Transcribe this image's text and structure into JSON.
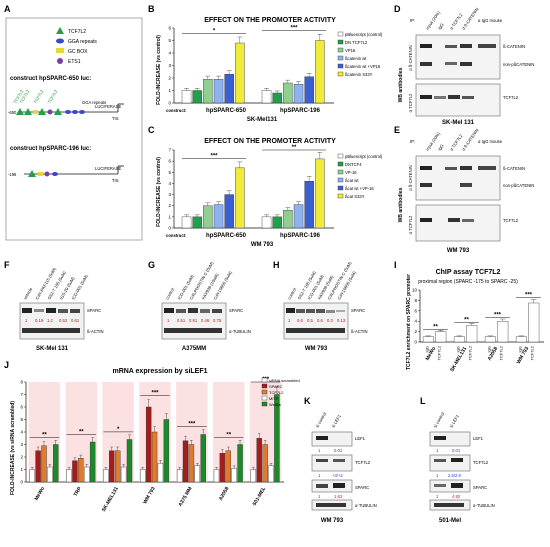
{
  "panels": [
    "A",
    "B",
    "C",
    "D",
    "E",
    "F",
    "G",
    "H",
    "I",
    "J",
    "K",
    "L"
  ],
  "panelA": {
    "legend": [
      {
        "label": "TCF7L2",
        "color": "#22a04a",
        "shape": "triangle"
      },
      {
        "label": "GGA repeats",
        "color": "#3b46c9",
        "shape": "ellipse"
      },
      {
        "label": "GC BOX",
        "color": "#e5d83a",
        "shape": "rect"
      },
      {
        "label": "ETS1",
        "color": "#7a3fa6",
        "shape": "circle"
      }
    ],
    "construct1": {
      "label": "construct hpSPARC-650 luc:",
      "start": "-650",
      "gga": "GGA  repeats",
      "luc": "LUCIFERASE",
      "tis": "TIS"
    },
    "construct2": {
      "label": "construct hpSPARC-196 luc:",
      "start": "-196",
      "luc": "LUCIFERASE",
      "tis": "TIS"
    },
    "sites": [
      "TCF7L2",
      "TCF7L2",
      "TCF7L2",
      "TCF7L2"
    ]
  },
  "colors": {
    "white": "#ffffff",
    "green": "#1fa04a",
    "lightgreen": "#8fd08f",
    "blue": "#3b5fd0",
    "lightblue": "#8fb2ee",
    "yellow": "#f0ea3a",
    "darkred": "#a51c1c",
    "orange": "#e07a2c",
    "darkgreen": "#1a8a2a",
    "pinkbg": "#f7c9c9"
  },
  "panelB": {
    "title": "EFFECT ON THE PROMOTER ACTIVITY",
    "ylabel": "FOLD-INCREASE (vs control)",
    "construct": "construct:",
    "cell": "SK-Mel131",
    "groups": [
      "hpSPARC-650",
      "hpSPARC-196"
    ],
    "legend": [
      "pBluescript (control)",
      "DN TCF7L2",
      "VP16",
      "ßcatenin wt",
      "ßcatenin wt +VP16",
      "ßcatenin S33Y"
    ],
    "sig": [
      "*",
      "***",
      "*",
      "***"
    ]
  },
  "panelC": {
    "title": "EFFECT ON THE PROMOTER ACTIVITY",
    "ylabel": "FOLD-INCREASE (vs control)",
    "construct": "construct:",
    "cell": "WM 793",
    "groups": [
      "hpSPARC-650",
      "hpSPARC-196"
    ],
    "legend": [
      "pBluescript (control)",
      "DNTCF4",
      "VP-16",
      "ßcat wt",
      "ßcat wt +VP-16",
      "ßcat S33Y"
    ],
    "sig": [
      "***",
      "**",
      "***",
      "**"
    ]
  },
  "panelD": {
    "ip_label": "IP:",
    "lanes": [
      "input (20%)",
      "IgG",
      "α TCF7L2",
      "α ß-CATENIN",
      "α IgG mouse"
    ],
    "wb": "WB antibodies",
    "blot1": "ß-CATENIN",
    "blot1b": "non-pßCATENIN",
    "blot2": "TCF7L2",
    "side1": "α ß-CATENIN",
    "side2": "α TCF7L2",
    "cell": "SK-Mel 131"
  },
  "panelE": {
    "ip_label": "IP:",
    "lanes": [
      "input (20%)",
      "IgG",
      "α TCF7L2",
      "α ß-CATENIN",
      "α IgG mouse"
    ],
    "wb": "WB antibodies",
    "blot1": "ß-CATENIN",
    "blot1b": "non-pßCATENIN",
    "blot2": "TCF7L2",
    "side1": "α ß-CATENIN",
    "side2": "α TCF7L2",
    "cell": "WM 793"
  },
  "panelF": {
    "lanes": [
      "vehicle",
      "CAY-PKF115 (5uM)",
      "SS2-T 105 (5uM)",
      "IGS-29 (5uM)",
      "ICG-001 (5uM)"
    ],
    "quant": [
      "1",
      "0.19",
      "1.2",
      "0.52",
      "0.61"
    ],
    "bands": [
      "SPARC",
      "ß-ACTIN"
    ],
    "cell": "SK-Mel 131"
  },
  "panelG": {
    "lanes": [
      "control",
      "ICG-001 (5uM)",
      "CALPHOSTIN C (5uM)",
      "XAV939 (10uM)",
      "CAY10650 (5uM)"
    ],
    "quant": [
      "1",
      "0.51",
      "0.81",
      "0.46",
      "0.75"
    ],
    "bands": [
      "SPARC",
      "α-TUBULIN"
    ],
    "cell": "A375MM"
  },
  "panelH": {
    "lanes": [
      "control",
      "SS2-T 105 (5uM)",
      "ICG-001 (5uM)",
      "XAV939 (5uM)",
      "CALPHOSTIN C (5uM)",
      "CAY10650 (5uM)"
    ],
    "quant": [
      "1",
      "0.6",
      "0.5",
      "0.6",
      "0.3",
      "0.13"
    ],
    "bands": [
      "SPARC",
      "ß-ACTIN"
    ],
    "cell": "WM 793"
  },
  "panelI": {
    "title": "ChIP assay TCF7L2",
    "subtitle": "proximal region (SPARC -175 to SPARC -25)",
    "ylabel": "TCF7L2 enrichment on SPARC promoter",
    "cells": [
      "MeWo",
      "SK-MEL131",
      "A2058",
      "WM 793"
    ],
    "bars": [
      "IgG",
      "TCF7L2"
    ],
    "sig": [
      "**",
      "**",
      "***",
      "***"
    ]
  },
  "panelJ": {
    "title": "mRNA expression by siLEF1",
    "ylabel": "FOLD-INCREASE (vs siRNA scrambled)",
    "cells": [
      "MeWo",
      "TRP",
      "SK-MEL131",
      "WM 793",
      "A375 MM",
      "A2058",
      "501-MEL"
    ],
    "legend": [
      "siRNA scrambled",
      "SPARC",
      "TCF7L2",
      "MITF",
      "Wnt5a"
    ],
    "sig": [
      "**",
      "**",
      "*",
      "***",
      "***",
      "**",
      "***"
    ]
  },
  "panelK": {
    "lanes": [
      "si control",
      "si LEF1"
    ],
    "bands": [
      "LEF1",
      "TCF7L2",
      "SPARC",
      "α-TUBULIN"
    ],
    "q1": [
      "1",
      "0.01"
    ],
    "q2": [
      "1",
      "+3/+2"
    ],
    "q3": [
      "1",
      "1.63"
    ],
    "cell": "WM 793"
  },
  "panelL": {
    "lanes": [
      "si control",
      "si LEF1"
    ],
    "bands": [
      "LEF1",
      "TCF7L2",
      "SPARC",
      "α-TUBULIN"
    ],
    "q1": [
      "1",
      "0.01"
    ],
    "q2": [
      "1",
      "2.5/2.9"
    ],
    "q3": [
      "1",
      "4.92"
    ],
    "cell": "501-Mel"
  },
  "chart_data": [
    {
      "panel": "B",
      "type": "bar",
      "title": "EFFECT ON THE PROMOTER ACTIVITY",
      "ylabel": "FOLD-INCREASE (vs control)",
      "ylim": [
        0,
        6
      ],
      "categories": [
        "hpSPARC-650",
        "hpSPARC-196"
      ],
      "series": [
        {
          "name": "pBluescript (control)",
          "values": [
            1,
            1
          ]
        },
        {
          "name": "DN TCF7L2",
          "values": [
            1,
            0.8
          ]
        },
        {
          "name": "VP16",
          "values": [
            1.9,
            1.6
          ]
        },
        {
          "name": "ßcatenin wt",
          "values": [
            1.9,
            1.5
          ]
        },
        {
          "name": "ßcatenin wt +VP16",
          "values": [
            2.3,
            2.1
          ]
        },
        {
          "name": "ßcatenin S33Y",
          "values": [
            4.8,
            5.0
          ]
        }
      ]
    },
    {
      "panel": "C",
      "type": "bar",
      "title": "EFFECT ON THE PROMOTER ACTIVITY",
      "ylabel": "FOLD-INCREASE (vs control)",
      "ylim": [
        0,
        7
      ],
      "categories": [
        "hpSPARC-650",
        "hpSPARC-196"
      ],
      "series": [
        {
          "name": "pBluescript (control)",
          "values": [
            1,
            1
          ]
        },
        {
          "name": "DNTCF4",
          "values": [
            1,
            1
          ]
        },
        {
          "name": "VP-16",
          "values": [
            2.0,
            1.6
          ]
        },
        {
          "name": "ßcat wt",
          "values": [
            2.1,
            2.1
          ]
        },
        {
          "name": "ßcat wt +VP-16",
          "values": [
            3.0,
            4.2
          ]
        },
        {
          "name": "ßcat S33Y",
          "values": [
            5.4,
            6.2
          ]
        }
      ]
    },
    {
      "panel": "I",
      "type": "bar",
      "title": "ChIP assay TCF7L2",
      "ylabel": "TCF7L2 enrichment on SPARC promoter",
      "ylim": [
        0,
        10
      ],
      "categories": [
        "MeWo",
        "SK-MEL131",
        "A2058",
        "WM 793"
      ],
      "series": [
        {
          "name": "IgG",
          "values": [
            1,
            1,
            1,
            1
          ]
        },
        {
          "name": "TCF7L2",
          "values": [
            2.0,
            3.2,
            4.0,
            7.5
          ]
        }
      ]
    },
    {
      "panel": "J",
      "type": "bar",
      "title": "mRNA expression by siLEF1",
      "ylabel": "FOLD-INCREASE (vs siRNA scrambled)",
      "ylim": [
        0,
        8
      ],
      "categories": [
        "MeWo",
        "TRP",
        "SK-MEL131",
        "WM 793",
        "A375 MM",
        "A2058",
        "501-MEL"
      ],
      "series": [
        {
          "name": "siRNA scrambled",
          "values": [
            1,
            1,
            1,
            1,
            1,
            1,
            1
          ]
        },
        {
          "name": "SPARC",
          "values": [
            2.5,
            1.7,
            2.5,
            6.0,
            3.3,
            2.3,
            3.5
          ]
        },
        {
          "name": "TCF7L2",
          "values": [
            2.9,
            1.9,
            2.5,
            4.0,
            3.0,
            2.5,
            3.0
          ]
        },
        {
          "name": "MITF",
          "values": [
            1.2,
            1.2,
            1.2,
            1.5,
            1.3,
            1.1,
            1.3
          ]
        },
        {
          "name": "Wnt5a",
          "values": [
            3.0,
            3.2,
            3.4,
            5.0,
            3.8,
            3.0,
            7.0
          ]
        }
      ]
    }
  ]
}
